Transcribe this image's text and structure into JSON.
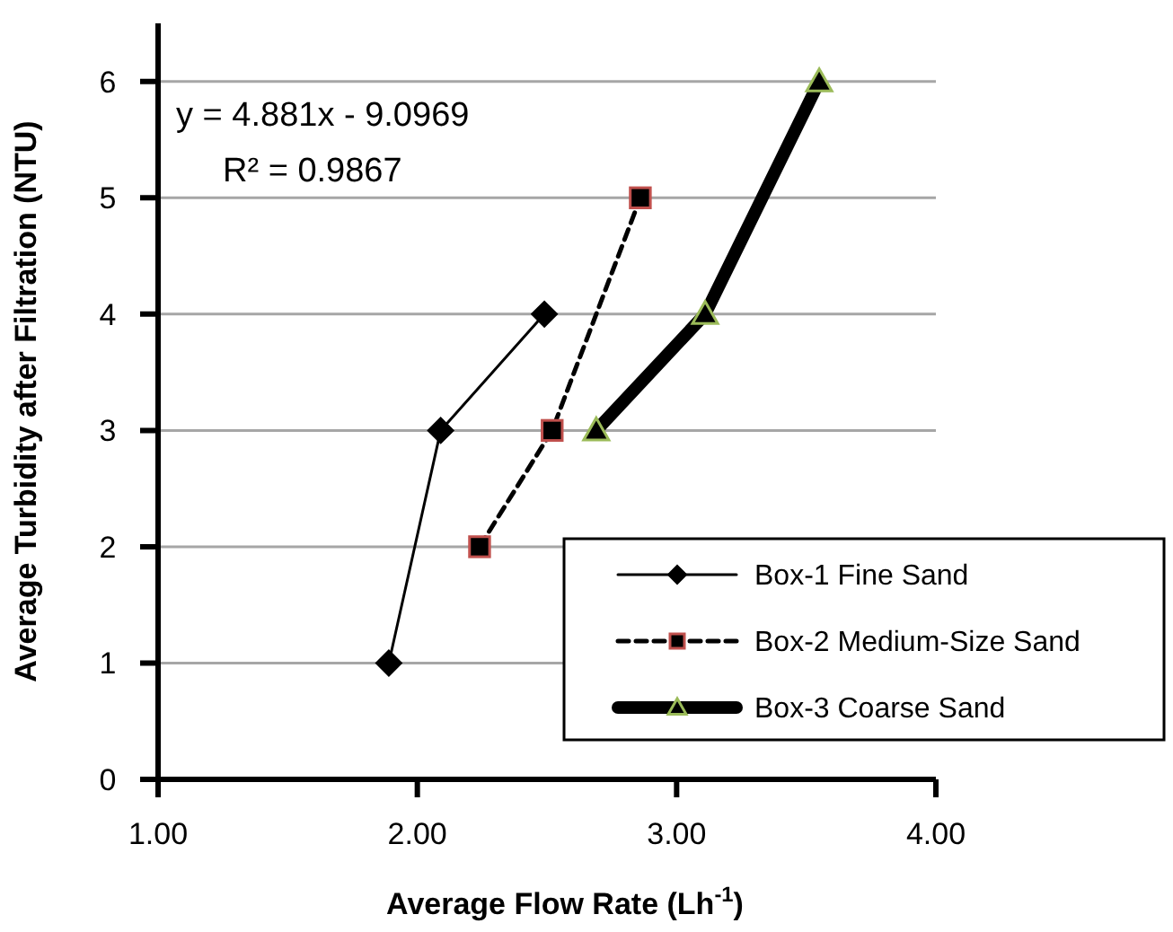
{
  "chart_data": {
    "type": "line",
    "xlabel": "Average Flow Rate (Lh$^{-1}$)",
    "ylabel": "Average Turbidity after Filtration (NTU)",
    "xlim": [
      1,
      4
    ],
    "xticks": [
      {
        "value": 1,
        "label": "1.00"
      },
      {
        "value": 2,
        "label": "2.00"
      },
      {
        "value": 3,
        "label": "3.00"
      },
      {
        "value": 4,
        "label": "4.00"
      }
    ],
    "ylim": [
      0,
      6.5
    ],
    "yticks": [
      0,
      1,
      2,
      3,
      4,
      5,
      6
    ],
    "grid": "y",
    "legend": "bottom right",
    "annotations": [
      "y = 4.881x - 9.0969",
      "R² = 0.9867"
    ],
    "series": [
      {
        "name": "Box-1 Fine Sand",
        "color": "#000000",
        "marker": "diamond",
        "line_style": "solid",
        "x": [
          1.89,
          2.09,
          2.49
        ],
        "values": [
          1,
          3,
          4
        ]
      },
      {
        "name": "Box-2 Medium-Size Sand",
        "color": "#000000",
        "marker": "square",
        "line_style": "dashed",
        "x": [
          2.24,
          2.52,
          2.86
        ],
        "values": [
          2,
          3,
          5
        ]
      },
      {
        "name": "Box-3 Coarse Sand",
        "color": "#000000",
        "marker": "triangle",
        "line_style": "solid",
        "x": [
          2.69,
          3.11,
          3.55
        ],
        "values": [
          3,
          4,
          6
        ]
      }
    ]
  }
}
